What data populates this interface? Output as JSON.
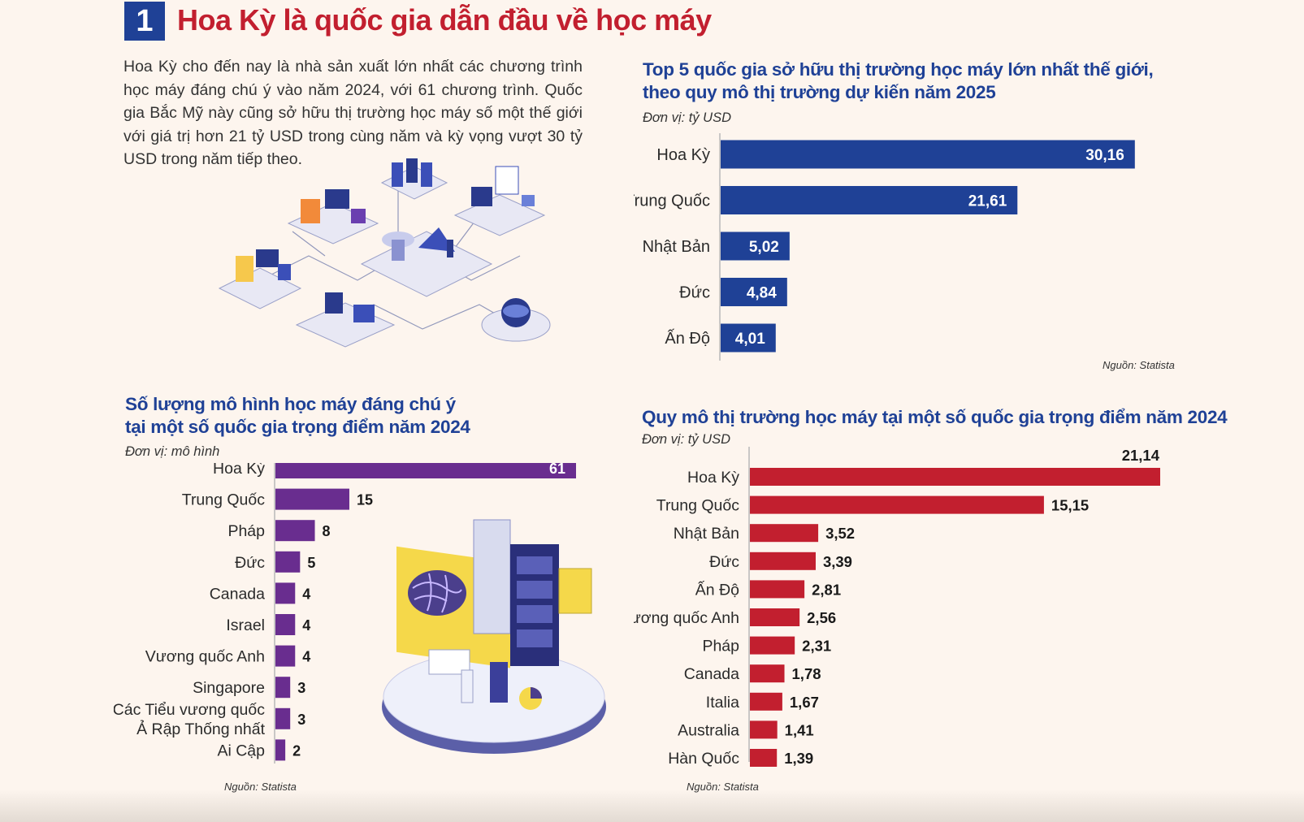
{
  "header": {
    "number": "1",
    "title": "Hoa Kỳ là quốc gia dẫn đầu về học máy"
  },
  "intro": "Hoa Kỳ cho đến nay là nhà sản xuất lớn nhất các chương trình học máy đáng chú ý vào năm 2024, với 61 chương trình. Quốc gia Bắc Mỹ này cũng sở hữu thị trường học máy số một thế giới với giá trị hơn 21 tỷ USD trong cùng năm và kỳ vọng vượt 30 tỷ USD trong năm tiếp theo.",
  "colors": {
    "blue": "#1f4196",
    "purple": "#692d8f",
    "red": "#c21f2f",
    "title_red": "#c21f2f",
    "background": "#fdf5ee"
  },
  "chart_data": [
    {
      "id": "top5",
      "type": "bar",
      "orientation": "horizontal",
      "title": [
        "Top 5 quốc gia sở hữu thị trường học máy lớn nhất thế giới,",
        "theo quy mô thị trường dự kiến năm 2025"
      ],
      "unit": "Đơn vị: tỷ USD",
      "source": "Nguồn: Statista",
      "categories": [
        "Hoa Kỳ",
        "Trung Quốc",
        "Nhật Bản",
        "Đức",
        "Ấn Độ"
      ],
      "values": [
        30.16,
        21.61,
        5.02,
        4.84,
        4.01
      ],
      "value_labels": [
        "30,16",
        "21,61",
        "5,02",
        "4,84",
        "4,01"
      ],
      "label_position": "inside",
      "color": "#1f4196",
      "xlim": [
        0,
        31
      ]
    },
    {
      "id": "models",
      "type": "bar",
      "orientation": "horizontal",
      "title": [
        "Số lượng mô hình học máy đáng chú ý",
        "tại một số quốc gia trọng điểm năm 2024"
      ],
      "unit": "Đơn vị: mô hình",
      "source": "Nguồn: Statista",
      "categories": [
        "Hoa Kỳ",
        "Trung Quốc",
        "Pháp",
        "Đức",
        "Canada",
        "Israel",
        "Vương quốc Anh",
        "Singapore",
        "Các Tiểu vương quốc Ả Rập Thống nhất",
        "Ai Cập"
      ],
      "category_lines": [
        [
          "Hoa Kỳ"
        ],
        [
          "Trung Quốc"
        ],
        [
          "Pháp"
        ],
        [
          "Đức"
        ],
        [
          "Canada"
        ],
        [
          "Israel"
        ],
        [
          "Vương quốc Anh"
        ],
        [
          "Singapore"
        ],
        [
          "Các Tiểu vương quốc",
          "Ả Rập Thống nhất"
        ],
        [
          "Ai Cập"
        ]
      ],
      "values": [
        61,
        15,
        8,
        5,
        4,
        4,
        4,
        3,
        3,
        2
      ],
      "value_labels": [
        "61",
        "15",
        "8",
        "5",
        "4",
        "4",
        "4",
        "3",
        "3",
        "2"
      ],
      "label_position": "inside-first",
      "color": "#692d8f",
      "xlim": [
        0,
        61
      ]
    },
    {
      "id": "market2024",
      "type": "bar",
      "orientation": "horizontal",
      "title": [
        "Quy mô thị trường học máy tại một số quốc gia trọng điểm năm 2024"
      ],
      "unit": "Đơn vị: tỷ USD",
      "source": "Nguồn: Statista",
      "categories": [
        "Hoa Kỳ",
        "Trung Quốc",
        "Nhật Bản",
        "Đức",
        "Ấn Độ",
        "Vương quốc Anh",
        "Pháp",
        "Canada",
        "Italia",
        "Australia",
        "Hàn Quốc"
      ],
      "values": [
        21.14,
        15.15,
        3.52,
        3.39,
        2.81,
        2.56,
        2.31,
        1.78,
        1.67,
        1.41,
        1.39
      ],
      "value_labels": [
        "21,14",
        "15,15",
        "3,52",
        "3,39",
        "2,81",
        "2,56",
        "2,31",
        "1,78",
        "1,67",
        "1,41",
        "1,39"
      ],
      "label_position": "outside",
      "color": "#c21f2f",
      "xlim": [
        0,
        21.14
      ]
    }
  ]
}
